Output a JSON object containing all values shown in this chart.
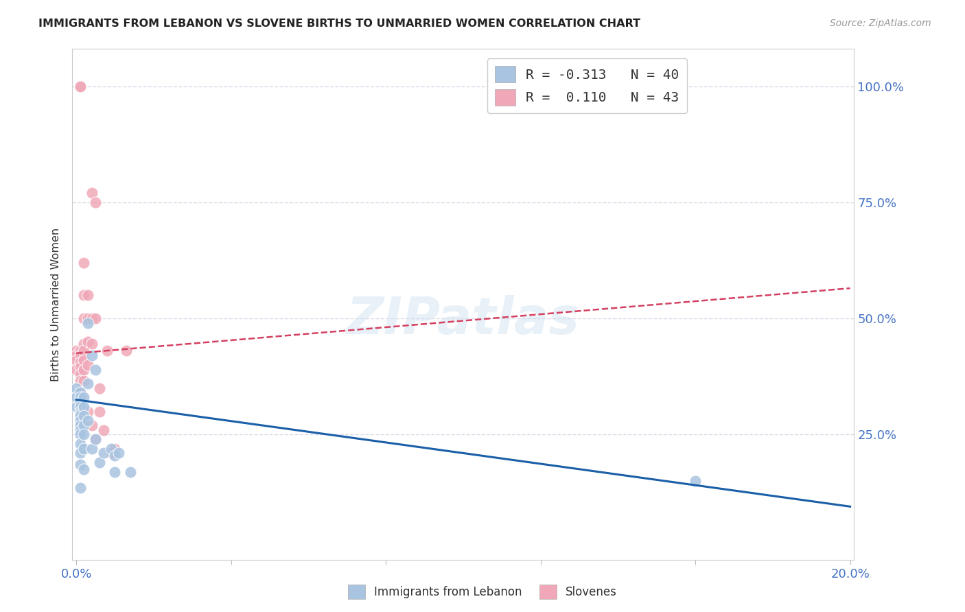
{
  "title": "IMMIGRANTS FROM LEBANON VS SLOVENE BIRTHS TO UNMARRIED WOMEN CORRELATION CHART",
  "source": "Source: ZipAtlas.com",
  "ylabel": "Births to Unmarried Women",
  "legend_blue_r": "-0.313",
  "legend_blue_n": "40",
  "legend_pink_r": "0.110",
  "legend_pink_n": "43",
  "legend_labels": [
    "Immigrants from Lebanon",
    "Slovenes"
  ],
  "blue_color": "#a8c4e0",
  "pink_color": "#f0a8b8",
  "line_blue_color": "#1a5fa8",
  "line_pink_color": "#d44060",
  "bg_color": "#ffffff",
  "grid_color": "#ddd8e8",
  "title_color": "#222222",
  "axis_label_color": "#4472c4",
  "blue_scatter": {
    "x": [
      0.0,
      0.0,
      0.0,
      0.001,
      0.001,
      0.001,
      0.001,
      0.001,
      0.001,
      0.001,
      0.001,
      0.001,
      0.001,
      0.001,
      0.001,
      0.001,
      0.001,
      0.001,
      0.002,
      0.002,
      0.002,
      0.002,
      0.002,
      0.002,
      0.002,
      0.003,
      0.003,
      0.003,
      0.004,
      0.004,
      0.005,
      0.005,
      0.006,
      0.007,
      0.009,
      0.01,
      0.01,
      0.011,
      0.014,
      0.16
    ],
    "y": [
      0.35,
      0.33,
      0.31,
      0.34,
      0.33,
      0.32,
      0.31,
      0.3,
      0.295,
      0.29,
      0.28,
      0.27,
      0.26,
      0.25,
      0.23,
      0.21,
      0.185,
      0.135,
      0.33,
      0.31,
      0.29,
      0.27,
      0.25,
      0.22,
      0.175,
      0.49,
      0.36,
      0.28,
      0.42,
      0.22,
      0.39,
      0.24,
      0.19,
      0.21,
      0.22,
      0.205,
      0.17,
      0.21,
      0.17,
      0.15
    ]
  },
  "pink_scatter": {
    "x": [
      0.0,
      0.0,
      0.0,
      0.0,
      0.001,
      0.001,
      0.001,
      0.001,
      0.001,
      0.001,
      0.001,
      0.001,
      0.001,
      0.001,
      0.001,
      0.002,
      0.002,
      0.002,
      0.002,
      0.002,
      0.002,
      0.002,
      0.002,
      0.002,
      0.003,
      0.003,
      0.003,
      0.003,
      0.003,
      0.004,
      0.004,
      0.004,
      0.004,
      0.005,
      0.005,
      0.005,
      0.006,
      0.006,
      0.007,
      0.008,
      0.009,
      0.01,
      0.013
    ],
    "y": [
      0.43,
      0.42,
      0.41,
      0.39,
      0.43,
      0.42,
      0.405,
      0.395,
      0.38,
      0.365,
      0.34,
      0.325,
      0.31,
      1.0,
      1.0,
      0.62,
      0.55,
      0.5,
      0.445,
      0.43,
      0.41,
      0.39,
      0.365,
      0.3,
      0.55,
      0.5,
      0.45,
      0.4,
      0.3,
      0.77,
      0.5,
      0.445,
      0.27,
      0.75,
      0.5,
      0.24,
      0.35,
      0.3,
      0.26,
      0.43,
      0.21,
      0.22,
      0.43
    ]
  },
  "blue_line": {
    "x0": 0.0,
    "x1": 0.2,
    "y0": 0.325,
    "y1": 0.095
  },
  "pink_line": {
    "x0": 0.0,
    "x1": 0.2,
    "y0": 0.425,
    "y1": 0.565
  },
  "xtick_vals": [
    0.0,
    0.04,
    0.08,
    0.12,
    0.16,
    0.2
  ],
  "right_ytick_vals": [
    0.25,
    0.5,
    0.75,
    1.0
  ],
  "right_ytick_labels": [
    "25.0%",
    "50.0%",
    "75.0%",
    "100.0%"
  ],
  "xmin": -0.001,
  "xmax": 0.201,
  "ymin": -0.02,
  "ymax": 1.08
}
